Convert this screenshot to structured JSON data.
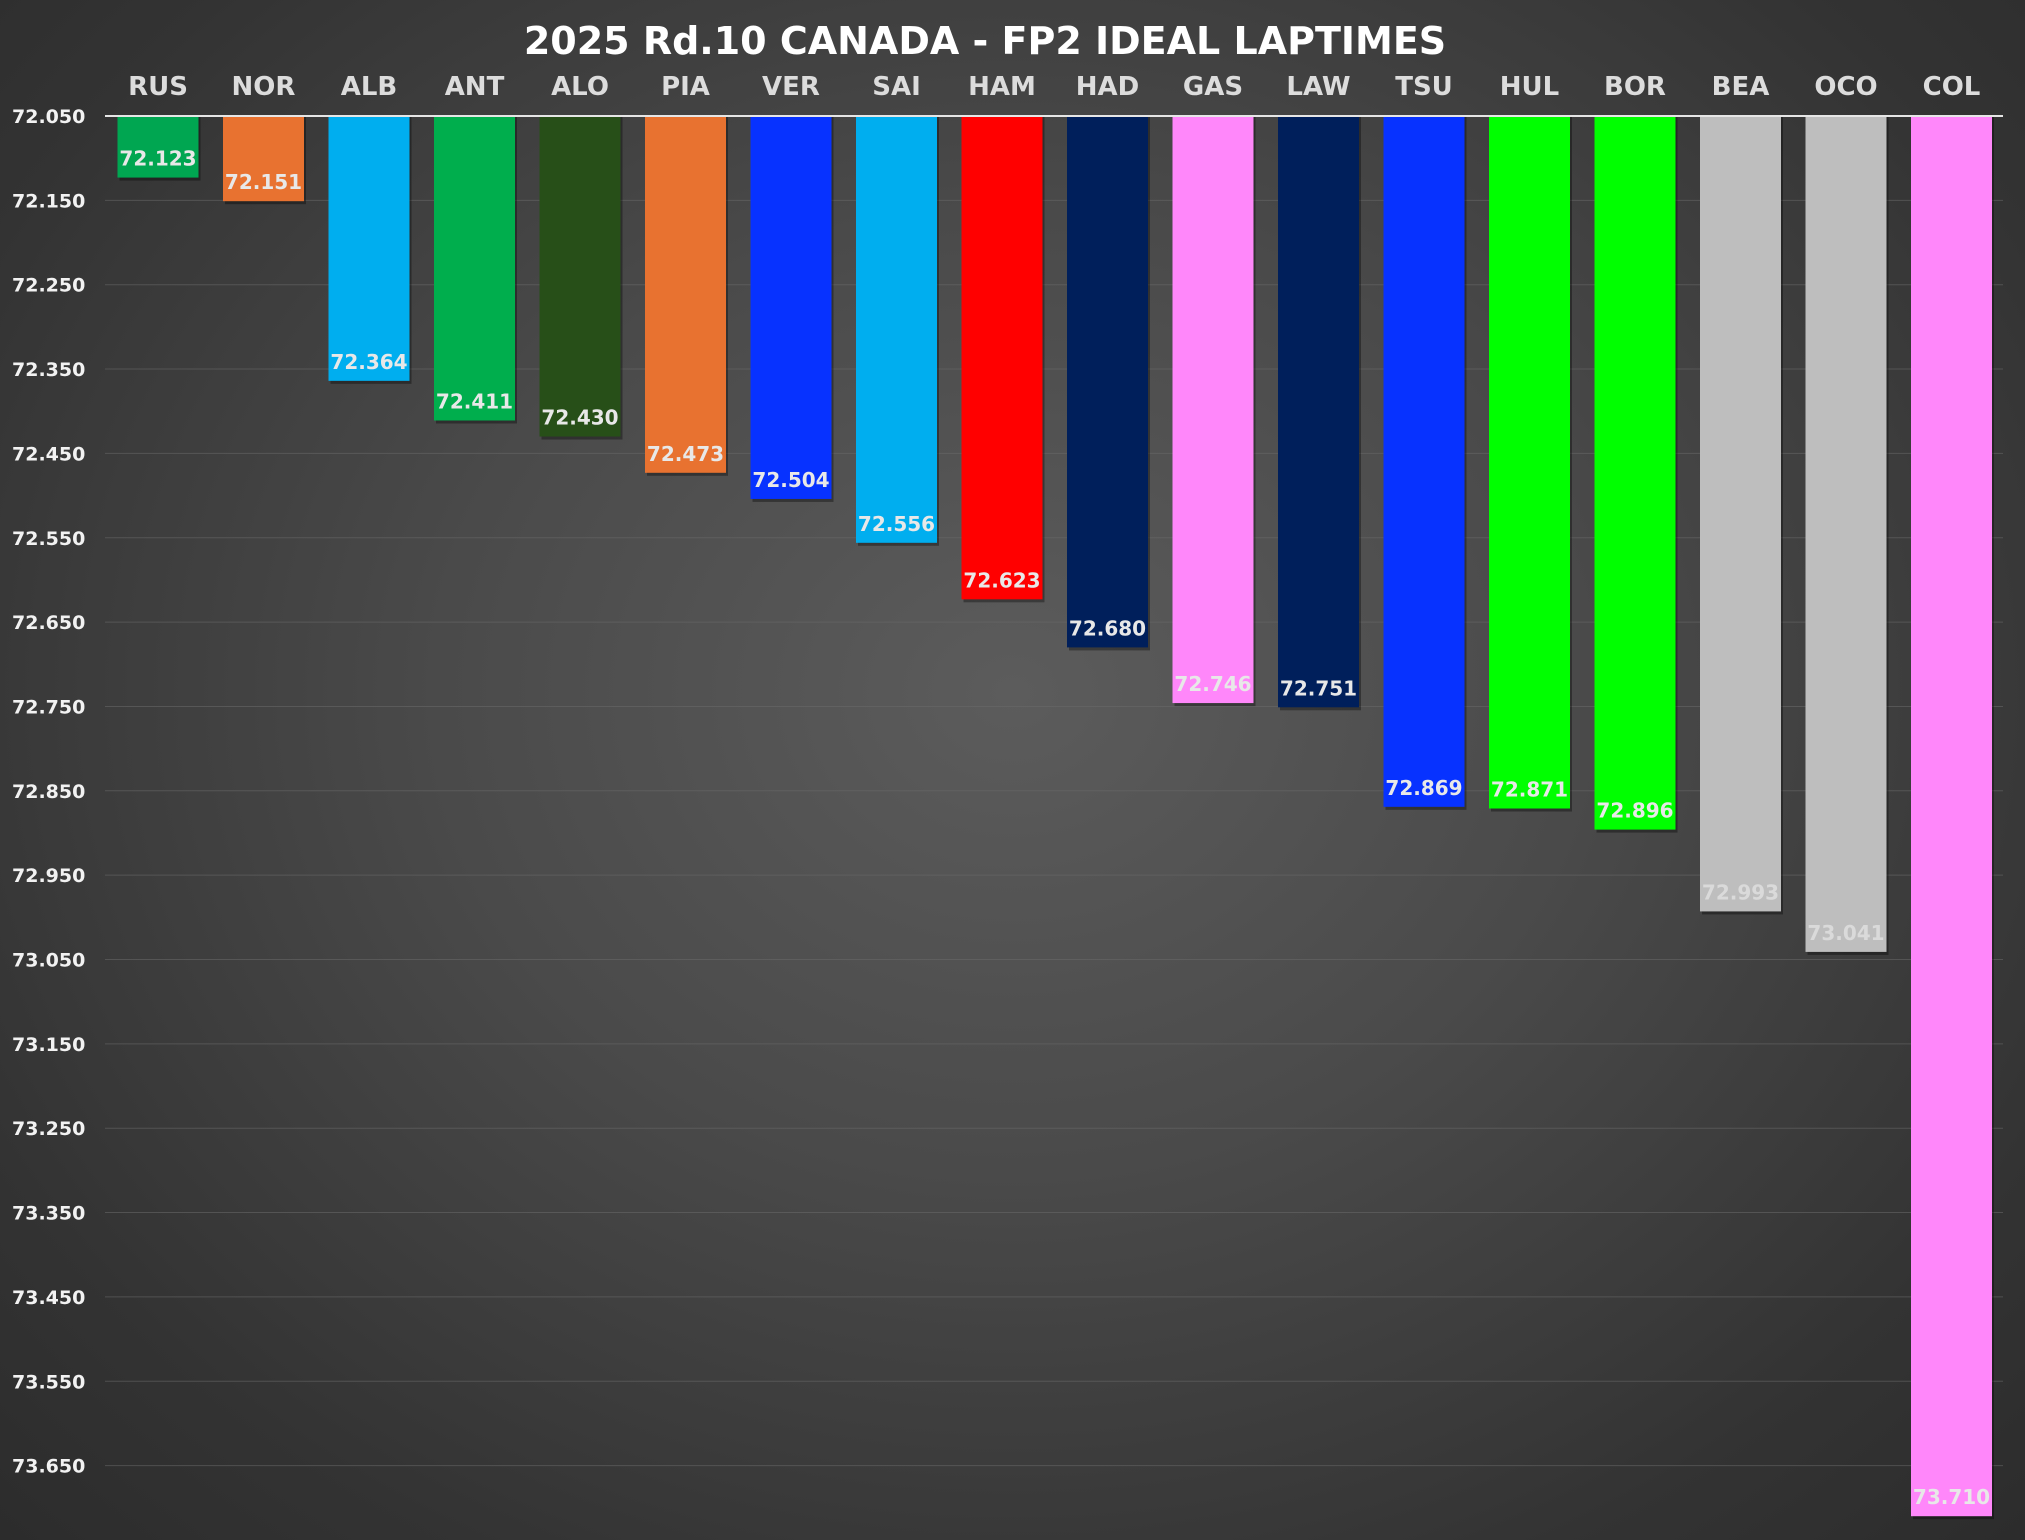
{
  "chart_data": {
    "type": "bar",
    "title": "2025 Rd.10 CANADA - FP2 IDEAL LAPTIMES",
    "xlabel": "",
    "ylabel": "",
    "ylim": [
      72.05,
      73.71
    ],
    "y_inverted": true,
    "grid": true,
    "categories": [
      "RUS",
      "NOR",
      "ALB",
      "ANT",
      "ALO",
      "PIA",
      "VER",
      "SAI",
      "HAM",
      "HAD",
      "GAS",
      "LAW",
      "TSU",
      "HUL",
      "BOR",
      "BEA",
      "OCO",
      "COL"
    ],
    "values": [
      72.123,
      72.151,
      72.364,
      72.411,
      72.43,
      72.473,
      72.504,
      72.556,
      72.623,
      72.68,
      72.746,
      72.751,
      72.869,
      72.871,
      72.896,
      72.993,
      73.041,
      73.71
    ],
    "value_labels": [
      "72.123",
      "72.151",
      "72.364",
      "72.411",
      "72.430",
      "72.473",
      "72.504",
      "72.556",
      "72.623",
      "72.680",
      "72.746",
      "72.751",
      "72.869",
      "72.871",
      "72.896",
      "72.993",
      "73.041",
      "73.710"
    ],
    "bar_colors": [
      "#00A651",
      "#E87230",
      "#00AEEF",
      "#00AE4D",
      "#274F18",
      "#E87230",
      "#0732FF",
      "#00AEEF",
      "#FF0000",
      "#001F5B",
      "#FF87FA",
      "#001F5B",
      "#0732FF",
      "#00FF00",
      "#00FF00",
      "#BEBEBE",
      "#BEBEBE",
      "#FF87FA"
    ],
    "label_colors": [
      "#e8e8e8",
      "#e8e8e8",
      "#e8e8e8",
      "#e8e8e8",
      "#e8e8e8",
      "#e8e8e8",
      "#e8e8e8",
      "#e8e8e8",
      "#e8e8e8",
      "#e8e8e8",
      "#e8e8e8",
      "#e8e8e8",
      "#e8e8e8",
      "#e8e8e8",
      "#e8e8e8",
      "#dadada",
      "#dadada",
      "#e8e8e8"
    ],
    "yticks": [
      72.05,
      72.15,
      72.25,
      72.35,
      72.45,
      72.55,
      72.65,
      72.75,
      72.85,
      72.95,
      73.05,
      73.15,
      73.25,
      73.35,
      73.45,
      73.55,
      73.65
    ],
    "ytick_labels": [
      "72.050",
      "72.150",
      "72.250",
      "72.350",
      "72.450",
      "72.550",
      "72.650",
      "72.750",
      "72.850",
      "72.950",
      "73.050",
      "73.150",
      "73.250",
      "73.350",
      "73.450",
      "73.550",
      "73.650"
    ]
  }
}
